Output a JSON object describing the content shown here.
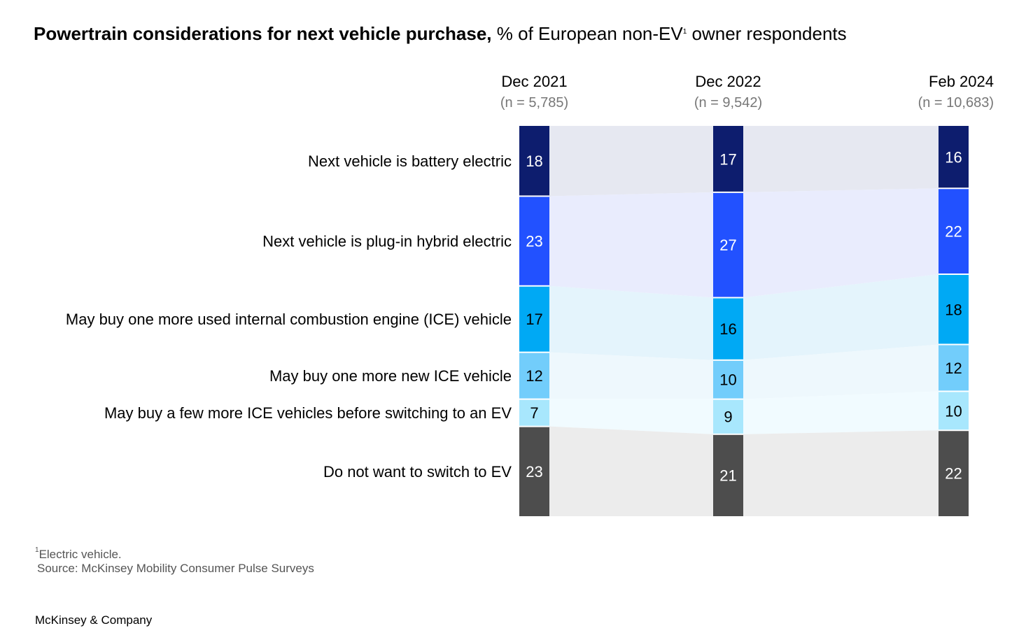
{
  "title": {
    "bold": "Powertrain considerations for next vehicle purchase,",
    "rest": " % of European non-EV",
    "sup": "1",
    "tail": " owner respondents"
  },
  "footnote": {
    "sup": "1",
    "text": "Electric vehicle."
  },
  "source": "Source: McKinsey Mobility Consumer Pulse Surveys",
  "brand": "McKinsey & Company",
  "chart_data": {
    "type": "bar",
    "subtype": "stacked-100-percent with connecting flows",
    "periods": [
      {
        "label": "Dec 2021",
        "n": "(n = 5,785)"
      },
      {
        "label": "Dec 2022",
        "n": "(n = 9,542)"
      },
      {
        "label": "Feb 2024",
        "n": "(n = 10,683)"
      }
    ],
    "series": [
      {
        "name": "Next vehicle is battery electric",
        "values": [
          18,
          17,
          16
        ],
        "color": "#0d1d6e",
        "flow_color": "#e6e8f1",
        "text_color": "#ffffff"
      },
      {
        "name": "Next vehicle is plug-in hybrid electric",
        "values": [
          23,
          27,
          22
        ],
        "color": "#2251ff",
        "flow_color": "#e9ecfd",
        "text_color": "#ffffff"
      },
      {
        "name": "May buy one more used internal combustion engine (ICE) vehicle",
        "values": [
          17,
          16,
          18
        ],
        "color": "#00a9f4",
        "flow_color": "#e4f4fc",
        "text_color": "#000000"
      },
      {
        "name": "May buy one more new ICE vehicle",
        "values": [
          12,
          10,
          12
        ],
        "color": "#72cdfb",
        "flow_color": "#eef8fd",
        "text_color": "#000000"
      },
      {
        "name": "May buy a few more ICE vehicles before switching to an EV",
        "values": [
          7,
          9,
          10
        ],
        "color": "#a8e7fd",
        "flow_color": "#f1fbff",
        "text_color": "#000000"
      },
      {
        "name": "Do not want to switch to EV",
        "values": [
          23,
          21,
          22
        ],
        "color": "#4d4d4d",
        "flow_color": "#ececec",
        "text_color": "#ffffff"
      }
    ]
  }
}
